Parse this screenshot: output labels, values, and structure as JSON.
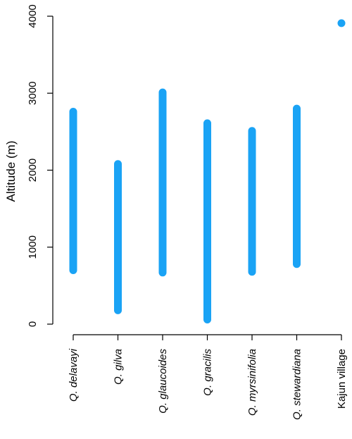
{
  "chart_data": {
    "type": "range",
    "ylabel": "Altitude (m)",
    "xlabel": "",
    "ylim": [
      0,
      4000
    ],
    "yticks": [
      0,
      1000,
      2000,
      3000,
      4000
    ],
    "grid": false,
    "color": "#1aa3f5",
    "categories": [
      {
        "label": "Q. delavayi",
        "italic": true,
        "low": 700,
        "high": 2760
      },
      {
        "label": "Q. gilva",
        "italic": true,
        "low": 180,
        "high": 2080
      },
      {
        "label": "Q. glaucoides",
        "italic": true,
        "low": 670,
        "high": 3010
      },
      {
        "label": "Q. gracilis",
        "italic": true,
        "low": 60,
        "high": 2610
      },
      {
        "label": "Q. myrsinifolia",
        "italic": true,
        "low": 680,
        "high": 2510
      },
      {
        "label": "Q. stewardiana",
        "italic": true,
        "low": 780,
        "high": 2800
      },
      {
        "label": "Kajun village",
        "italic": false,
        "low": 3910,
        "high": 3910
      }
    ]
  }
}
